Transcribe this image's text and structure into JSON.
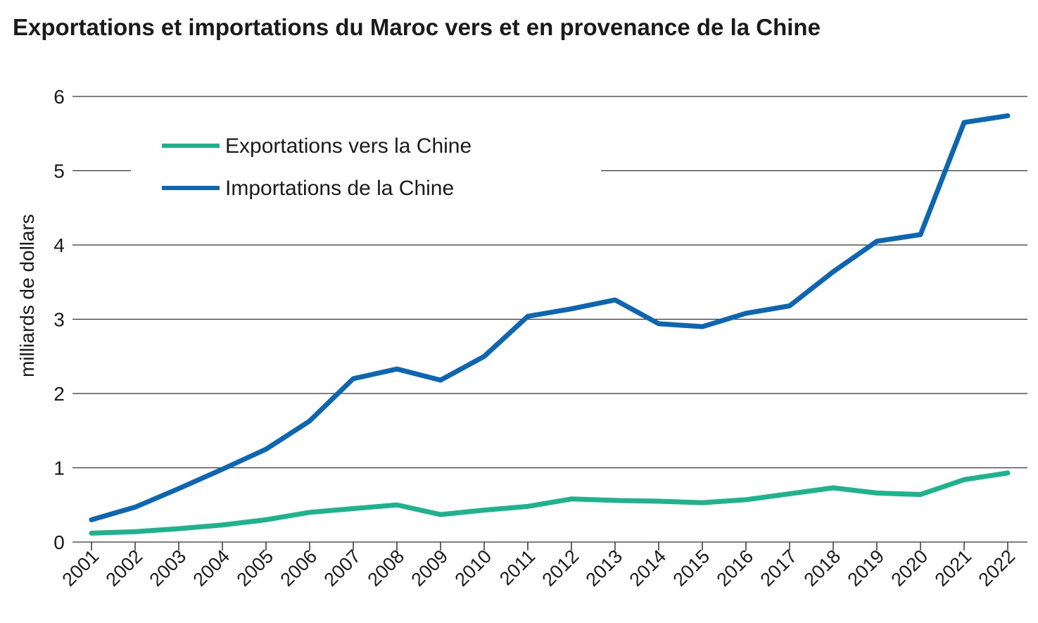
{
  "chart_data": {
    "type": "line",
    "title": "Exportations et importations du Maroc vers et en provenance de la Chine",
    "y_label": "milliards de dollars",
    "categories": [
      "2001",
      "2002",
      "2003",
      "2004",
      "2005",
      "2006",
      "2007",
      "2008",
      "2009",
      "2010",
      "2011",
      "2012",
      "2013",
      "2014",
      "2015",
      "2016",
      "2017",
      "2018",
      "2019",
      "2020",
      "2021",
      "2022"
    ],
    "series": [
      {
        "name": "Exportations vers la Chine",
        "color": "#1db38e",
        "values": [
          0.12,
          0.14,
          0.18,
          0.23,
          0.3,
          0.4,
          0.45,
          0.5,
          0.37,
          0.43,
          0.48,
          0.58,
          0.56,
          0.55,
          0.53,
          0.57,
          0.65,
          0.73,
          0.66,
          0.64,
          0.84,
          0.93
        ]
      },
      {
        "name": "Importations de la Chine",
        "color": "#0b66b3",
        "values": [
          0.3,
          0.47,
          0.72,
          0.98,
          1.25,
          1.63,
          2.2,
          2.33,
          2.18,
          2.5,
          3.04,
          3.14,
          3.26,
          2.94,
          2.9,
          3.08,
          3.18,
          3.64,
          4.05,
          4.14,
          5.65,
          5.74
        ]
      }
    ],
    "ylim": [
      0,
      6
    ],
    "yticks": [
      0,
      1,
      2,
      3,
      4,
      5,
      6
    ],
    "grid": true,
    "legend": "upper left"
  }
}
